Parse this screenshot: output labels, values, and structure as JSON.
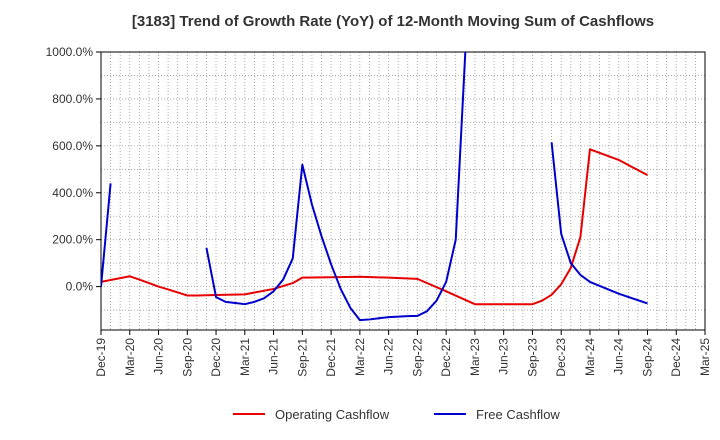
{
  "chart_data": {
    "type": "line",
    "title": "[3183]  Trend of Growth Rate (YoY) of 12-Month Moving Sum of Cashflows",
    "xlabel": "",
    "ylabel": "",
    "x_ticks": [
      "Dec-19",
      "Mar-20",
      "Jun-20",
      "Sep-20",
      "Dec-20",
      "Mar-21",
      "Jun-21",
      "Sep-21",
      "Dec-21",
      "Mar-22",
      "Jun-22",
      "Sep-22",
      "Dec-22",
      "Mar-23",
      "Jun-23",
      "Sep-23",
      "Dec-23",
      "Mar-24",
      "Jun-24",
      "Sep-24",
      "Dec-24",
      "Mar-25"
    ],
    "y_ticks": [
      "0.0%",
      "200.0%",
      "400.0%",
      "600.0%",
      "800.0%",
      "1000.0%"
    ],
    "y_tick_values": [
      0,
      200,
      400,
      600,
      800,
      1000
    ],
    "ylim": [
      -185,
      1000
    ],
    "x_range": [
      "Dec-19",
      "Mar-25"
    ],
    "grid": true,
    "legend_position": "bottom",
    "series": [
      {
        "name": "Operating Cashflow",
        "color": "#e60000",
        "points": [
          [
            "Dec-19",
            20
          ],
          [
            "Jan-20",
            28
          ],
          [
            "Feb-20",
            36
          ],
          [
            "Mar-20",
            44
          ],
          [
            "Apr-20",
            30
          ],
          [
            "May-20",
            15
          ],
          [
            "Jun-20",
            0
          ],
          [
            "Jul-20",
            -12
          ],
          [
            "Aug-20",
            -25
          ],
          [
            "Sep-20",
            -38
          ],
          [
            "Oct-20",
            -38
          ],
          [
            "Nov-20",
            -37
          ],
          [
            "Dec-20",
            -36
          ],
          [
            "Mar-21",
            -33
          ],
          [
            "Jun-21",
            -10
          ],
          [
            "Aug-21",
            15
          ],
          [
            "Sep-21",
            38
          ],
          [
            "Dec-21",
            40
          ],
          [
            "Mar-22",
            42
          ],
          [
            "Jun-22",
            38
          ],
          [
            "Sep-22",
            33
          ],
          [
            "Dec-22",
            -20
          ],
          [
            "Mar-23",
            -75
          ],
          [
            "Jun-23",
            -75
          ],
          [
            "Sep-23",
            -75
          ],
          [
            "Oct-23",
            -60
          ],
          [
            "Nov-23",
            -35
          ],
          [
            "Dec-23",
            10
          ],
          [
            "Jan-24",
            80
          ],
          [
            "Feb-24",
            210
          ],
          [
            "Mar-24",
            585
          ],
          [
            "Jun-24",
            540
          ],
          [
            "Sep-24",
            475
          ]
        ]
      },
      {
        "name": "Free Cashflow",
        "color": "#0000cc",
        "segments": [
          [
            [
              "Dec-19",
              0
            ],
            [
              "Jan-20",
              440
            ]
          ],
          [
            [
              "Nov-20",
              165
            ],
            [
              "Dec-20",
              -45
            ],
            [
              "Jan-21",
              -65
            ],
            [
              "Feb-21",
              -70
            ],
            [
              "Mar-21",
              -75
            ],
            [
              "Apr-21",
              -65
            ],
            [
              "May-21",
              -50
            ],
            [
              "Jun-21",
              -20
            ],
            [
              "Jul-21",
              30
            ],
            [
              "Aug-21",
              120
            ],
            [
              "Sep-21",
              520
            ],
            [
              "Oct-21",
              350
            ],
            [
              "Nov-21",
              215
            ],
            [
              "Dec-21",
              95
            ],
            [
              "Jan-22",
              -10
            ],
            [
              "Feb-22",
              -90
            ],
            [
              "Mar-22",
              -143
            ],
            [
              "Apr-22",
              -140
            ],
            [
              "May-22",
              -135
            ],
            [
              "Jun-22",
              -130
            ],
            [
              "Jul-22",
              -128
            ],
            [
              "Aug-22",
              -126
            ],
            [
              "Sep-22",
              -125
            ],
            [
              "Oct-22",
              -105
            ],
            [
              "Nov-22",
              -60
            ],
            [
              "Dec-22",
              20
            ],
            [
              "Jan-23",
              200
            ],
            [
              "Feb-23",
              1000
            ]
          ],
          [
            [
              "Nov-23",
              615
            ],
            [
              "Dec-23",
              225
            ],
            [
              "Jan-24",
              100
            ],
            [
              "Feb-24",
              50
            ],
            [
              "Mar-24",
              20
            ],
            [
              "Jun-24",
              -30
            ],
            [
              "Sep-24",
              -72
            ]
          ]
        ]
      }
    ]
  }
}
